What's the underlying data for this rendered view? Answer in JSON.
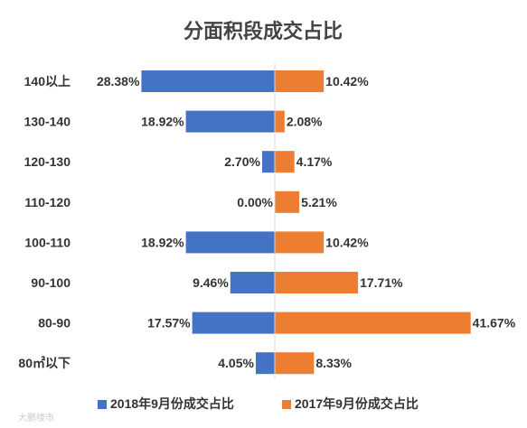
{
  "chart_data": {
    "type": "bar",
    "orientation": "horizontal-diverging",
    "title": "分面积段成交占比",
    "categories": [
      "140以上",
      "130-140",
      "120-130",
      "110-120",
      "100-110",
      "90-100",
      "80-90",
      "80㎡以下"
    ],
    "series": [
      {
        "name": "2018年9月份成交占比",
        "color": "#4472C4",
        "direction": "left",
        "values": [
          28.38,
          18.92,
          2.7,
          0.0,
          18.92,
          9.46,
          17.57,
          4.05
        ],
        "labels": [
          "28.38%",
          "18.92%",
          "2.70%",
          "0.00%",
          "18.92%",
          "9.46%",
          "17.57%",
          "4.05%"
        ]
      },
      {
        "name": "2017年9月份成交占比",
        "color": "#ED7D31",
        "direction": "right",
        "values": [
          10.42,
          2.08,
          4.17,
          5.21,
          10.42,
          17.71,
          41.67,
          8.33
        ],
        "labels": [
          "10.42%",
          "2.08%",
          "4.17%",
          "5.21%",
          "10.42%",
          "17.71%",
          "41.67%",
          "8.33%"
        ]
      }
    ],
    "legend_position": "bottom",
    "grid": false
  },
  "watermark": "大鹏楼市"
}
